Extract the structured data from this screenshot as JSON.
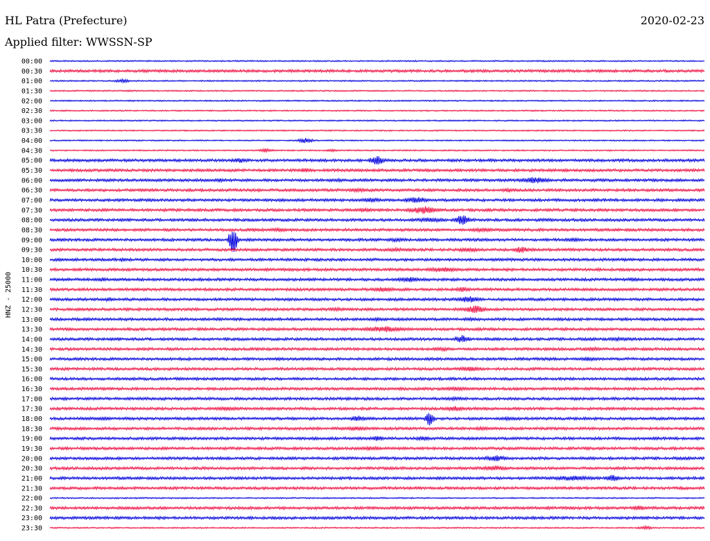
{
  "header": {
    "station": "HL Patra (Prefecture)",
    "date": "2020-02-23",
    "filter_text": "Applied filter: WWSSN-SP"
  },
  "chart_data": {
    "type": "line",
    "ylabel": "HNZ - 25000",
    "colors": {
      "even": "#0000dd",
      "odd": "#ee1144"
    },
    "tick_labels": [
      "00:00",
      "00:30",
      "01:00",
      "01:30",
      "02:00",
      "02:30",
      "03:00",
      "03:30",
      "04:00",
      "04:30",
      "05:00",
      "05:30",
      "06:00",
      "06:30",
      "07:00",
      "07:30",
      "08:00",
      "08:30",
      "09:00",
      "09:30",
      "10:00",
      "10:30",
      "11:00",
      "11:30",
      "12:00",
      "12:30",
      "13:00",
      "13:30",
      "14:00",
      "14:30",
      "15:00",
      "15:30",
      "16:00",
      "16:30",
      "17:00",
      "17:30",
      "18:00",
      "18:30",
      "19:00",
      "19:30",
      "20:00",
      "20:30",
      "21:00",
      "21:30",
      "22:00",
      "22:30",
      "23:00",
      "23:30"
    ],
    "noise_level": [
      1,
      2,
      1,
      1,
      1,
      1,
      1,
      1,
      1,
      1,
      2,
      2,
      2,
      2,
      2,
      2,
      2,
      2,
      2,
      2,
      2,
      2,
      2,
      2,
      2,
      2,
      2,
      2,
      2,
      2,
      2,
      2,
      2,
      2,
      2,
      2,
      2,
      2,
      2,
      2,
      2,
      2,
      2,
      2,
      1,
      2,
      2,
      1
    ],
    "events": [
      {
        "trace": 2,
        "x": 0.11,
        "amp": 3,
        "dur": 0.02
      },
      {
        "trace": 3,
        "x": 0.12,
        "amp": 2,
        "dur": 0.01
      },
      {
        "trace": 8,
        "x": 0.39,
        "amp": 4,
        "dur": 0.02
      },
      {
        "trace": 9,
        "x": 0.33,
        "amp": 3,
        "dur": 0.02
      },
      {
        "trace": 9,
        "x": 0.43,
        "amp": 2,
        "dur": 0.02
      },
      {
        "trace": 10,
        "x": 0.29,
        "amp": 4,
        "dur": 0.02
      },
      {
        "trace": 10,
        "x": 0.5,
        "amp": 7,
        "dur": 0.02
      },
      {
        "trace": 11,
        "x": 0.39,
        "amp": 4,
        "dur": 0.02
      },
      {
        "trace": 12,
        "x": 0.26,
        "amp": 3,
        "dur": 0.02
      },
      {
        "trace": 12,
        "x": 0.44,
        "amp": 3,
        "dur": 0.02
      },
      {
        "trace": 12,
        "x": 0.74,
        "amp": 5,
        "dur": 0.04
      },
      {
        "trace": 13,
        "x": 0.47,
        "amp": 3,
        "dur": 0.03
      },
      {
        "trace": 13,
        "x": 0.7,
        "amp": 3,
        "dur": 0.03
      },
      {
        "trace": 14,
        "x": 0.49,
        "amp": 4,
        "dur": 0.03
      },
      {
        "trace": 14,
        "x": 0.56,
        "amp": 5,
        "dur": 0.03
      },
      {
        "trace": 15,
        "x": 0.48,
        "amp": 3,
        "dur": 0.03
      },
      {
        "trace": 15,
        "x": 0.57,
        "amp": 6,
        "dur": 0.04
      },
      {
        "trace": 16,
        "x": 0.58,
        "amp": 4,
        "dur": 0.04
      },
      {
        "trace": 16,
        "x": 0.63,
        "amp": 8,
        "dur": 0.02
      },
      {
        "trace": 17,
        "x": 0.35,
        "amp": 3,
        "dur": 0.03
      },
      {
        "trace": 17,
        "x": 0.66,
        "amp": 3,
        "dur": 0.04
      },
      {
        "trace": 18,
        "x": 0.28,
        "amp": 24,
        "dur": 0.01
      },
      {
        "trace": 18,
        "x": 0.53,
        "amp": 3,
        "dur": 0.03
      },
      {
        "trace": 18,
        "x": 0.8,
        "amp": 3,
        "dur": 0.03
      },
      {
        "trace": 19,
        "x": 0.53,
        "amp": 3,
        "dur": 0.03
      },
      {
        "trace": 19,
        "x": 0.64,
        "amp": 4,
        "dur": 0.03
      },
      {
        "trace": 19,
        "x": 0.72,
        "amp": 5,
        "dur": 0.02
      },
      {
        "trace": 20,
        "x": 0.11,
        "amp": 3,
        "dur": 0.01
      },
      {
        "trace": 21,
        "x": 0.6,
        "amp": 4,
        "dur": 0.04
      },
      {
        "trace": 22,
        "x": 0.08,
        "amp": 3,
        "dur": 0.02
      },
      {
        "trace": 22,
        "x": 0.55,
        "amp": 4,
        "dur": 0.04
      },
      {
        "trace": 22,
        "x": 0.89,
        "amp": 3,
        "dur": 0.02
      },
      {
        "trace": 23,
        "x": 0.51,
        "amp": 4,
        "dur": 0.03
      },
      {
        "trace": 23,
        "x": 0.63,
        "amp": 4,
        "dur": 0.02
      },
      {
        "trace": 24,
        "x": 0.09,
        "amp": 3,
        "dur": 0.02
      },
      {
        "trace": 24,
        "x": 0.64,
        "amp": 5,
        "dur": 0.03
      },
      {
        "trace": 25,
        "x": 0.44,
        "amp": 3,
        "dur": 0.03
      },
      {
        "trace": 25,
        "x": 0.65,
        "amp": 6,
        "dur": 0.03
      },
      {
        "trace": 26,
        "x": 0.5,
        "amp": 3,
        "dur": 0.02
      },
      {
        "trace": 26,
        "x": 0.64,
        "amp": 3,
        "dur": 0.02
      },
      {
        "trace": 27,
        "x": 0.51,
        "amp": 5,
        "dur": 0.05
      },
      {
        "trace": 28,
        "x": 0.63,
        "amp": 6,
        "dur": 0.02
      },
      {
        "trace": 28,
        "x": 0.87,
        "amp": 3,
        "dur": 0.03
      },
      {
        "trace": 29,
        "x": 0.6,
        "amp": 3,
        "dur": 0.03
      },
      {
        "trace": 29,
        "x": 0.83,
        "amp": 3,
        "dur": 0.03
      },
      {
        "trace": 30,
        "x": 0.82,
        "amp": 3,
        "dur": 0.04
      },
      {
        "trace": 31,
        "x": 0.64,
        "amp": 4,
        "dur": 0.03
      },
      {
        "trace": 33,
        "x": 0.62,
        "amp": 3,
        "dur": 0.05
      },
      {
        "trace": 34,
        "x": 0.62,
        "amp": 3,
        "dur": 0.03
      },
      {
        "trace": 35,
        "x": 0.62,
        "amp": 4,
        "dur": 0.03
      },
      {
        "trace": 35,
        "x": 0.27,
        "amp": 3,
        "dur": 0.04
      },
      {
        "trace": 36,
        "x": 0.08,
        "amp": 3,
        "dur": 0.03
      },
      {
        "trace": 36,
        "x": 0.47,
        "amp": 5,
        "dur": 0.02
      },
      {
        "trace": 36,
        "x": 0.58,
        "amp": 12,
        "dur": 0.01
      },
      {
        "trace": 36,
        "x": 0.7,
        "amp": 3,
        "dur": 0.02
      },
      {
        "trace": 37,
        "x": 0.47,
        "amp": 3,
        "dur": 0.05
      },
      {
        "trace": 37,
        "x": 0.66,
        "amp": 3,
        "dur": 0.03
      },
      {
        "trace": 38,
        "x": 0.5,
        "amp": 4,
        "dur": 0.02
      },
      {
        "trace": 38,
        "x": 0.57,
        "amp": 4,
        "dur": 0.02
      },
      {
        "trace": 39,
        "x": 0.49,
        "amp": 3,
        "dur": 0.04
      },
      {
        "trace": 40,
        "x": 0.68,
        "amp": 5,
        "dur": 0.03
      },
      {
        "trace": 41,
        "x": 0.68,
        "amp": 4,
        "dur": 0.04
      },
      {
        "trace": 42,
        "x": 0.8,
        "amp": 4,
        "dur": 0.06
      },
      {
        "trace": 42,
        "x": 0.86,
        "amp": 5,
        "dur": 0.02
      },
      {
        "trace": 45,
        "x": 0.9,
        "amp": 4,
        "dur": 0.02
      },
      {
        "trace": 47,
        "x": 0.91,
        "amp": 3,
        "dur": 0.02
      }
    ]
  }
}
